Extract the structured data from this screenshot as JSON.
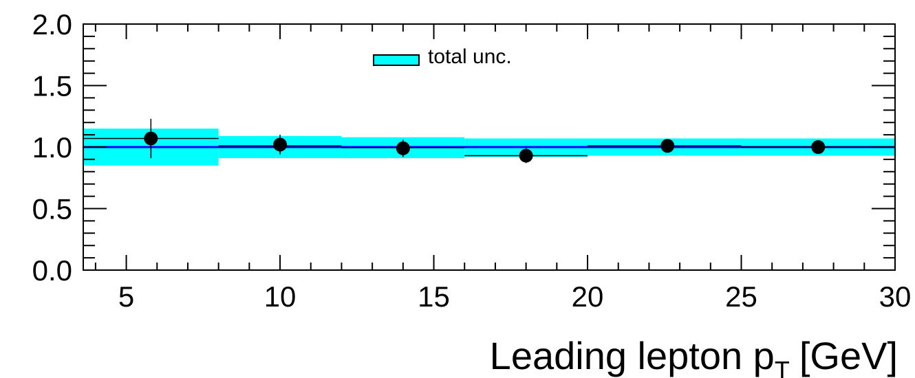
{
  "chart_data": {
    "type": "scatter",
    "title": "",
    "xlabel_main": "Leading lepton p",
    "xlabel_sub": "T",
    "xlabel_unit": "[GeV]",
    "ylabel": "",
    "xlim": [
      3.6,
      30
    ],
    "ylim": [
      0,
      2
    ],
    "grid": false,
    "legend_placement": "top-center",
    "x_ticks": [
      {
        "value": 5,
        "label": "5"
      },
      {
        "value": 10,
        "label": "10"
      },
      {
        "value": 15,
        "label": "15"
      },
      {
        "value": 20,
        "label": "20"
      },
      {
        "value": 25,
        "label": "25"
      },
      {
        "value": 30,
        "label": "30"
      }
    ],
    "y_ticks": [
      {
        "value": 0,
        "label": "0.0"
      },
      {
        "value": 0.5,
        "label": "0.5"
      },
      {
        "value": 1.0,
        "label": "1.0"
      },
      {
        "value": 1.5,
        "label": "1.5"
      },
      {
        "value": 2.0,
        "label": "2.0"
      }
    ],
    "legend": [
      {
        "label": "total unc.",
        "color": "#00ffff"
      }
    ],
    "band_color": "#00ffff",
    "reference_line": {
      "y": 1.0,
      "color": "#0000ff"
    },
    "bins": [
      {
        "xlow": 3.6,
        "xhigh": 8,
        "x": 5.8,
        "y": 1.07,
        "yerr": 0.16,
        "band_low": 0.85,
        "band_high": 1.15,
        "mc": 1.07
      },
      {
        "xlow": 8,
        "xhigh": 12,
        "x": 10.0,
        "y": 1.02,
        "yerr": 0.08,
        "band_low": 0.91,
        "band_high": 1.09,
        "mc": 1.01
      },
      {
        "xlow": 12,
        "xhigh": 16,
        "x": 14.0,
        "y": 0.99,
        "yerr": 0.07,
        "band_low": 0.91,
        "band_high": 1.08,
        "mc": 0.995
      },
      {
        "xlow": 16,
        "xhigh": 20,
        "x": 18.0,
        "y": 0.93,
        "yerr": 0.06,
        "band_low": 0.92,
        "band_high": 1.07,
        "mc": 0.93
      },
      {
        "xlow": 20,
        "xhigh": 25,
        "x": 22.6,
        "y": 1.01,
        "yerr": 0.05,
        "band_low": 0.93,
        "band_high": 1.07,
        "mc": 1.01
      },
      {
        "xlow": 25,
        "xhigh": 30,
        "x": 27.5,
        "y": 1.0,
        "yerr": 0.05,
        "band_low": 0.93,
        "band_high": 1.07,
        "mc": 1.0
      }
    ]
  }
}
